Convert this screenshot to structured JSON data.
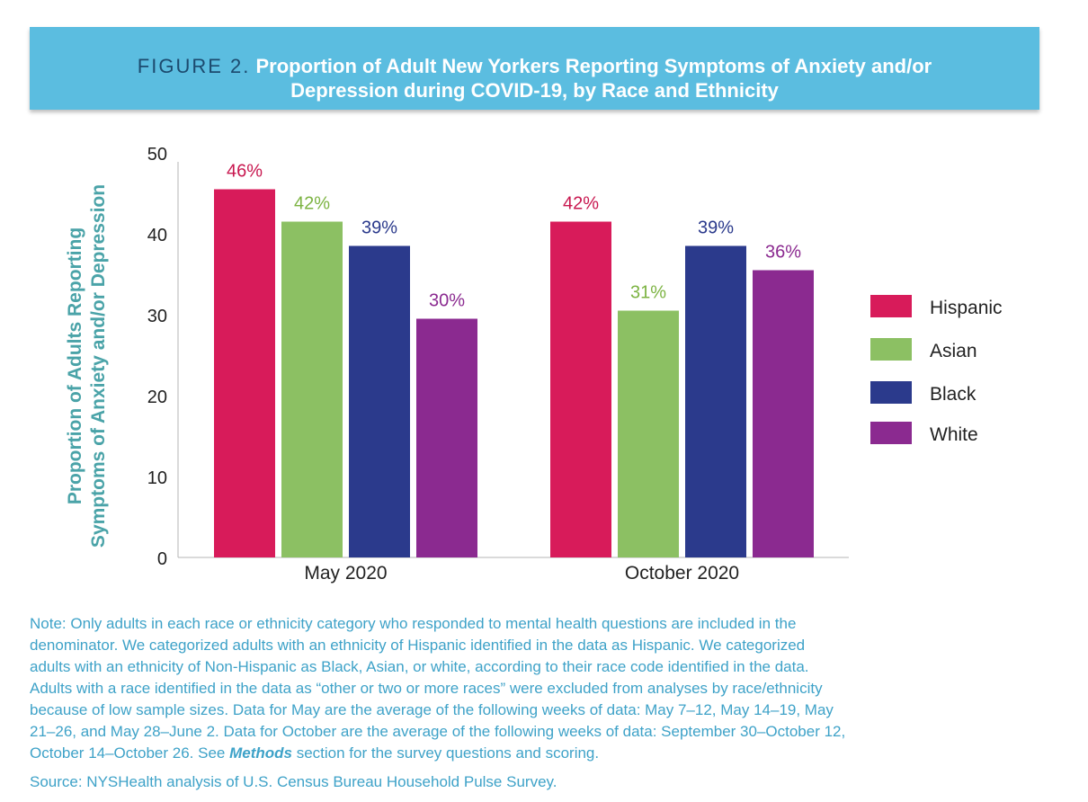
{
  "header": {
    "figure_label": "FIGURE 2.",
    "title_line1": "Proportion of Adult New Yorkers Reporting Symptoms of Anxiety and/or",
    "title_line2": "Depression during COVID-19, by Race and Ethnicity"
  },
  "chart_data": {
    "type": "bar",
    "title": "Proportion of Adult New Yorkers Reporting Symptoms of Anxiety and/or Depression during COVID-19, by Race and Ethnicity",
    "ylabel_line1": "Proportion of Adults Reporting",
    "ylabel_line2": "Symptoms of Anxiety and/or Depression",
    "xlabel": "",
    "ylim": [
      0,
      50
    ],
    "yticks": [
      0,
      10,
      20,
      30,
      40,
      50
    ],
    "categories": [
      "May 2020",
      "October 2020"
    ],
    "series": [
      {
        "name": "Hispanic",
        "color": "#d81b5a",
        "values": [
          45.5,
          41.5
        ],
        "labels": [
          "46%",
          "42%"
        ]
      },
      {
        "name": "Asian",
        "color": "#8cc063",
        "values": [
          41.5,
          30.5
        ],
        "labels": [
          "42%",
          "31%"
        ]
      },
      {
        "name": "Black",
        "color": "#2b3a8c",
        "values": [
          38.5,
          38.5
        ],
        "labels": [
          "39%",
          "39%"
        ]
      },
      {
        "name": "White",
        "color": "#8b2a90",
        "values": [
          29.5,
          35.5
        ],
        "labels": [
          "30%",
          "36%"
        ]
      }
    ],
    "label_colors": [
      "#c8174f",
      "#7cb342",
      "#2b3a8c",
      "#8b2a90"
    ],
    "legend_position": "right",
    "grid": false
  },
  "note": {
    "line1": "Note: Only adults in each race or ethnicity category who responded to mental health questions are included in the",
    "line2": "denominator. We categorized adults with an ethnicity of Hispanic identified in the data as Hispanic. We categorized",
    "line3": "adults with an ethnicity of Non-Hispanic as Black, Asian, or white, according to their race code identified in the data.",
    "line4": "Adults with a race identified in the data as “other or two or more races” were excluded from analyses by race/ethnicity",
    "line5": "because of low sample sizes. Data for May are the average of the following weeks of data: May 7–12, May 14–19, May",
    "line6": "21–26, and May 28–June 2. Data for October are the average of the following weeks of data: September 30–October 12,",
    "line7_before": "October 14–October 26. See ",
    "line7_link": "Methods",
    "line7_after": " section for the survey questions and scoring."
  },
  "source": "Source: NYSHealth analysis of U.S. Census Bureau Household Pulse Survey."
}
